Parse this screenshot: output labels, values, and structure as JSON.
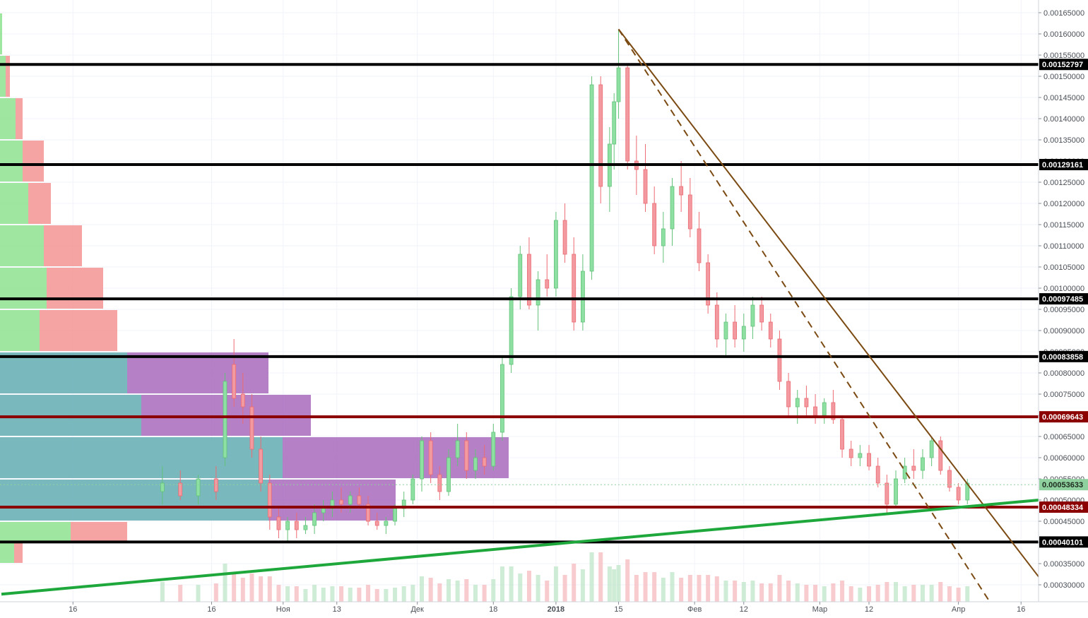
{
  "chart_data": {
    "type": "candlestick",
    "title": "",
    "xlabel": "",
    "ylabel": "",
    "ylim": [
      0.00026,
      0.00168
    ],
    "x_ticks": [
      {
        "label": "16",
        "day": 16
      },
      {
        "label": "16",
        "day": 47
      },
      {
        "label": "Ноя",
        "day": 63
      },
      {
        "label": "13",
        "day": 75
      },
      {
        "label": "Дек",
        "day": 93
      },
      {
        "label": "18",
        "day": 110
      },
      {
        "label": "2018",
        "day": 124
      },
      {
        "label": "15",
        "day": 138
      },
      {
        "label": "Фев",
        "day": 155
      },
      {
        "label": "12",
        "day": 166
      },
      {
        "label": "Мар",
        "day": 183
      },
      {
        "label": "12",
        "day": 194
      },
      {
        "label": "Апр",
        "day": 214
      },
      {
        "label": "16",
        "day": 228
      }
    ],
    "x_tick_bold": [
      "2018"
    ],
    "y_ticks": [
      "0.00030000",
      "0.00035000",
      "0.00040000",
      "0.00045000",
      "0.00050000",
      "0.00055000",
      "0.00060000",
      "0.00065000",
      "0.00070000",
      "0.00075000",
      "0.00080000",
      "0.00085000",
      "0.00090000",
      "0.00095000",
      "0.00100000",
      "0.00105000",
      "0.00110000",
      "0.00115000",
      "0.00120000",
      "0.00125000",
      "0.00130000",
      "0.00135000",
      "0.00140000",
      "0.00145000",
      "0.00150000",
      "0.00155000",
      "0.00160000",
      "0.00165000"
    ],
    "horizontal_levels": [
      {
        "value": 0.00152797,
        "label": "0.00152797",
        "color": "#000000"
      },
      {
        "value": 0.00129161,
        "label": "0.00129161",
        "color": "#000000"
      },
      {
        "value": 0.00097485,
        "label": "0.00097485",
        "color": "#000000"
      },
      {
        "value": 0.00083858,
        "label": "0.00083858",
        "color": "#000000"
      },
      {
        "value": 0.00069643,
        "label": "0.00069643",
        "color": "#8b0000"
      },
      {
        "value": 0.00048334,
        "label": "0.00048334",
        "color": "#8b0000"
      },
      {
        "value": 0.00040101,
        "label": "0.00040101",
        "color": "#000000"
      }
    ],
    "last_price": {
      "value": 0.00053633,
      "label": "0.00053633",
      "color": "#8fd19e"
    },
    "trendlines": [
      {
        "name": "",
        "color": "#7b4a12",
        "style": "solid",
        "from": {
          "day": 138,
          "price": 0.001611
        },
        "to": {
          "day": 232,
          "price": 0.000318
        }
      },
      {
        "name": "",
        "color": "#7b4a12",
        "style": "dashed",
        "from": {
          "day": 138,
          "price": 0.001611
        },
        "to": {
          "day": 221,
          "price": 0.00026
        }
      },
      {
        "name": "",
        "color": "#1ea83c",
        "style": "solid",
        "from": {
          "day": 0,
          "price": 0.000278
        },
        "to": {
          "day": 232,
          "price": 0.0005
        }
      }
    ],
    "candles": [
      {
        "day": 36,
        "o": 0.00052,
        "h": 0.00058,
        "l": 0.00049,
        "c": 0.00054
      },
      {
        "day": 40,
        "o": 0.00054,
        "h": 0.00057,
        "l": 0.0005,
        "c": 0.00051
      },
      {
        "day": 44,
        "o": 0.00051,
        "h": 0.00056,
        "l": 0.00049,
        "c": 0.00055
      },
      {
        "day": 48,
        "o": 0.00055,
        "h": 0.00058,
        "l": 0.0005,
        "c": 0.00052
      },
      {
        "day": 50,
        "o": 0.0006,
        "h": 0.0008,
        "l": 0.00058,
        "c": 0.00078
      },
      {
        "day": 52,
        "o": 0.00082,
        "h": 0.00088,
        "l": 0.00072,
        "c": 0.00074
      },
      {
        "day": 54,
        "o": 0.00075,
        "h": 0.0008,
        "l": 0.00068,
        "c": 0.00072
      },
      {
        "day": 56,
        "o": 0.00072,
        "h": 0.00075,
        "l": 0.0006,
        "c": 0.00062
      },
      {
        "day": 58,
        "o": 0.00062,
        "h": 0.00065,
        "l": 0.00052,
        "c": 0.00054
      },
      {
        "day": 60,
        "o": 0.00054,
        "h": 0.00056,
        "l": 0.00043,
        "c": 0.00046
      },
      {
        "day": 62,
        "o": 0.00046,
        "h": 0.00048,
        "l": 0.00041,
        "c": 0.00043
      },
      {
        "day": 64,
        "o": 0.00043,
        "h": 0.00046,
        "l": 0.0004,
        "c": 0.00045
      },
      {
        "day": 66,
        "o": 0.00045,
        "h": 0.00047,
        "l": 0.00041,
        "c": 0.00043
      },
      {
        "day": 68,
        "o": 0.00043,
        "h": 0.00046,
        "l": 0.00042,
        "c": 0.00044
      },
      {
        "day": 70,
        "o": 0.00044,
        "h": 0.00049,
        "l": 0.00042,
        "c": 0.00047
      },
      {
        "day": 72,
        "o": 0.00047,
        "h": 0.0005,
        "l": 0.00045,
        "c": 0.00048
      },
      {
        "day": 74,
        "o": 0.00048,
        "h": 0.00052,
        "l": 0.00046,
        "c": 0.0005
      },
      {
        "day": 76,
        "o": 0.0005,
        "h": 0.00053,
        "l": 0.00047,
        "c": 0.00049
      },
      {
        "day": 78,
        "o": 0.00049,
        "h": 0.00052,
        "l": 0.00047,
        "c": 0.00051
      },
      {
        "day": 80,
        "o": 0.00051,
        "h": 0.00053,
        "l": 0.00048,
        "c": 0.00049
      },
      {
        "day": 82,
        "o": 0.00049,
        "h": 0.00051,
        "l": 0.00044,
        "c": 0.00045
      },
      {
        "day": 84,
        "o": 0.00045,
        "h": 0.00047,
        "l": 0.00043,
        "c": 0.00044
      },
      {
        "day": 86,
        "o": 0.00044,
        "h": 0.00046,
        "l": 0.00042,
        "c": 0.00045
      },
      {
        "day": 88,
        "o": 0.00045,
        "h": 0.00049,
        "l": 0.00044,
        "c": 0.00048
      },
      {
        "day": 90,
        "o": 0.00048,
        "h": 0.00052,
        "l": 0.00046,
        "c": 0.0005
      },
      {
        "day": 92,
        "o": 0.0005,
        "h": 0.00056,
        "l": 0.00049,
        "c": 0.00055
      },
      {
        "day": 94,
        "o": 0.00055,
        "h": 0.00065,
        "l": 0.00052,
        "c": 0.00064
      },
      {
        "day": 96,
        "o": 0.00064,
        "h": 0.00066,
        "l": 0.00054,
        "c": 0.00056
      },
      {
        "day": 98,
        "o": 0.00056,
        "h": 0.00058,
        "l": 0.0005,
        "c": 0.00052
      },
      {
        "day": 100,
        "o": 0.00052,
        "h": 0.00062,
        "l": 0.00051,
        "c": 0.0006
      },
      {
        "day": 102,
        "o": 0.0006,
        "h": 0.00068,
        "l": 0.00058,
        "c": 0.00064
      },
      {
        "day": 104,
        "o": 0.00064,
        "h": 0.00066,
        "l": 0.00055,
        "c": 0.00057
      },
      {
        "day": 106,
        "o": 0.00057,
        "h": 0.00062,
        "l": 0.00055,
        "c": 0.0006
      },
      {
        "day": 108,
        "o": 0.0006,
        "h": 0.00063,
        "l": 0.00056,
        "c": 0.00058
      },
      {
        "day": 110,
        "o": 0.00058,
        "h": 0.00068,
        "l": 0.00057,
        "c": 0.00066
      },
      {
        "day": 112,
        "o": 0.00066,
        "h": 0.00084,
        "l": 0.00064,
        "c": 0.00082
      },
      {
        "day": 114,
        "o": 0.00082,
        "h": 0.001,
        "l": 0.0008,
        "c": 0.00098
      },
      {
        "day": 116,
        "o": 0.00098,
        "h": 0.0011,
        "l": 0.00095,
        "c": 0.00108
      },
      {
        "day": 118,
        "o": 0.00108,
        "h": 0.00112,
        "l": 0.00095,
        "c": 0.00096
      },
      {
        "day": 120,
        "o": 0.00096,
        "h": 0.00104,
        "l": 0.0009,
        "c": 0.00102
      },
      {
        "day": 122,
        "o": 0.00102,
        "h": 0.00108,
        "l": 0.00098,
        "c": 0.001
      },
      {
        "day": 124,
        "o": 0.001,
        "h": 0.00118,
        "l": 0.00098,
        "c": 0.00116
      },
      {
        "day": 126,
        "o": 0.00116,
        "h": 0.0012,
        "l": 0.00106,
        "c": 0.00108
      },
      {
        "day": 128,
        "o": 0.00108,
        "h": 0.00112,
        "l": 0.0009,
        "c": 0.00092
      },
      {
        "day": 130,
        "o": 0.00092,
        "h": 0.00108,
        "l": 0.0009,
        "c": 0.00104
      },
      {
        "day": 132,
        "o": 0.00104,
        "h": 0.0015,
        "l": 0.00102,
        "c": 0.00148
      },
      {
        "day": 134,
        "o": 0.00148,
        "h": 0.0015,
        "l": 0.0012,
        "c": 0.00124
      },
      {
        "day": 136,
        "o": 0.00124,
        "h": 0.00138,
        "l": 0.00118,
        "c": 0.00134
      },
      {
        "day": 137,
        "o": 0.00134,
        "h": 0.00146,
        "l": 0.00128,
        "c": 0.00144
      },
      {
        "day": 138,
        "o": 0.00144,
        "h": 0.00161,
        "l": 0.0014,
        "c": 0.00152
      },
      {
        "day": 140,
        "o": 0.00152,
        "h": 0.00153,
        "l": 0.00128,
        "c": 0.0013
      },
      {
        "day": 142,
        "o": 0.0013,
        "h": 0.00136,
        "l": 0.00122,
        "c": 0.00128
      },
      {
        "day": 144,
        "o": 0.00128,
        "h": 0.00134,
        "l": 0.00118,
        "c": 0.0012
      },
      {
        "day": 146,
        "o": 0.0012,
        "h": 0.00124,
        "l": 0.00108,
        "c": 0.0011
      },
      {
        "day": 148,
        "o": 0.0011,
        "h": 0.00118,
        "l": 0.00106,
        "c": 0.00114
      },
      {
        "day": 150,
        "o": 0.00114,
        "h": 0.00126,
        "l": 0.0011,
        "c": 0.00124
      },
      {
        "day": 152,
        "o": 0.00124,
        "h": 0.0013,
        "l": 0.00118,
        "c": 0.00122
      },
      {
        "day": 154,
        "o": 0.00122,
        "h": 0.00126,
        "l": 0.00112,
        "c": 0.00114
      },
      {
        "day": 156,
        "o": 0.00114,
        "h": 0.00118,
        "l": 0.00104,
        "c": 0.00106
      },
      {
        "day": 158,
        "o": 0.00106,
        "h": 0.00108,
        "l": 0.00094,
        "c": 0.00096
      },
      {
        "day": 160,
        "o": 0.00096,
        "h": 0.00099,
        "l": 0.00086,
        "c": 0.00088
      },
      {
        "day": 162,
        "o": 0.00088,
        "h": 0.00094,
        "l": 0.00084,
        "c": 0.00092
      },
      {
        "day": 164,
        "o": 0.00092,
        "h": 0.00096,
        "l": 0.00086,
        "c": 0.00088
      },
      {
        "day": 166,
        "o": 0.00088,
        "h": 0.00094,
        "l": 0.00085,
        "c": 0.00091
      },
      {
        "day": 168,
        "o": 0.00091,
        "h": 0.00098,
        "l": 0.00088,
        "c": 0.00096
      },
      {
        "day": 170,
        "o": 0.00096,
        "h": 0.00098,
        "l": 0.0009,
        "c": 0.00092
      },
      {
        "day": 172,
        "o": 0.00092,
        "h": 0.00094,
        "l": 0.00086,
        "c": 0.00088
      },
      {
        "day": 174,
        "o": 0.00088,
        "h": 0.0009,
        "l": 0.00076,
        "c": 0.00078
      },
      {
        "day": 176,
        "o": 0.00078,
        "h": 0.0008,
        "l": 0.0007,
        "c": 0.00072
      },
      {
        "day": 178,
        "o": 0.00072,
        "h": 0.00076,
        "l": 0.00068,
        "c": 0.00074
      },
      {
        "day": 180,
        "o": 0.00074,
        "h": 0.00077,
        "l": 0.0007,
        "c": 0.00072
      },
      {
        "day": 182,
        "o": 0.00072,
        "h": 0.00075,
        "l": 0.00068,
        "c": 0.0007
      },
      {
        "day": 184,
        "o": 0.0007,
        "h": 0.00074,
        "l": 0.00068,
        "c": 0.00073
      },
      {
        "day": 186,
        "o": 0.00073,
        "h": 0.00076,
        "l": 0.00068,
        "c": 0.00069
      },
      {
        "day": 188,
        "o": 0.00069,
        "h": 0.0007,
        "l": 0.0006,
        "c": 0.00062
      },
      {
        "day": 190,
        "o": 0.00062,
        "h": 0.00064,
        "l": 0.00058,
        "c": 0.0006
      },
      {
        "day": 192,
        "o": 0.0006,
        "h": 0.00063,
        "l": 0.00058,
        "c": 0.00061
      },
      {
        "day": 194,
        "o": 0.00061,
        "h": 0.00063,
        "l": 0.00057,
        "c": 0.00058
      },
      {
        "day": 196,
        "o": 0.00058,
        "h": 0.0006,
        "l": 0.00053,
        "c": 0.00054
      },
      {
        "day": 198,
        "o": 0.00054,
        "h": 0.00056,
        "l": 0.00047,
        "c": 0.00049
      },
      {
        "day": 200,
        "o": 0.00049,
        "h": 0.00057,
        "l": 0.00048,
        "c": 0.00055
      },
      {
        "day": 202,
        "o": 0.00055,
        "h": 0.0006,
        "l": 0.00054,
        "c": 0.00058
      },
      {
        "day": 204,
        "o": 0.00058,
        "h": 0.00062,
        "l": 0.00055,
        "c": 0.00057
      },
      {
        "day": 206,
        "o": 0.00057,
        "h": 0.00062,
        "l": 0.00055,
        "c": 0.0006
      },
      {
        "day": 208,
        "o": 0.0006,
        "h": 0.00065,
        "l": 0.00058,
        "c": 0.00064
      },
      {
        "day": 210,
        "o": 0.00064,
        "h": 0.00065,
        "l": 0.00056,
        "c": 0.00057
      },
      {
        "day": 212,
        "o": 0.00057,
        "h": 0.00058,
        "l": 0.00052,
        "c": 0.00053
      },
      {
        "day": 214,
        "o": 0.00053,
        "h": 0.00054,
        "l": 0.00049,
        "c": 0.0005
      },
      {
        "day": 216,
        "o": 0.0005,
        "h": 0.00055,
        "l": 0.00049,
        "c": 0.00054
      }
    ],
    "volume_profile": [
      {
        "price_low": 0.00155,
        "price_high": 0.00165,
        "up": 0.0015,
        "down": 0.0
      },
      {
        "price_low": 0.00145,
        "price_high": 0.00155,
        "up": 0.004,
        "down": 0.003
      },
      {
        "price_low": 0.00135,
        "price_high": 0.00145,
        "up": 0.011,
        "down": 0.005
      },
      {
        "price_low": 0.00125,
        "price_high": 0.00135,
        "up": 0.016,
        "down": 0.015
      },
      {
        "price_low": 0.00115,
        "price_high": 0.00125,
        "up": 0.02,
        "down": 0.016
      },
      {
        "price_low": 0.00105,
        "price_high": 0.00115,
        "up": 0.031,
        "down": 0.027
      },
      {
        "price_low": 0.00095,
        "price_high": 0.00105,
        "up": 0.033,
        "down": 0.04
      },
      {
        "price_low": 0.00085,
        "price_high": 0.00095,
        "up": 0.028,
        "down": 0.055
      },
      {
        "price_low": 0.00075,
        "price_high": 0.00085,
        "up": 0.09,
        "down": 0.1
      },
      {
        "price_low": 0.00065,
        "price_high": 0.00075,
        "up": 0.1,
        "down": 0.12
      },
      {
        "price_low": 0.00055,
        "price_high": 0.00065,
        "up": 0.2,
        "down": 0.16
      },
      {
        "price_low": 0.00045,
        "price_high": 0.00055,
        "up": 0.19,
        "down": 0.09
      },
      {
        "price_low": 0.0004,
        "price_high": 0.00045,
        "up": 0.05,
        "down": 0.04
      },
      {
        "price_low": 0.00035,
        "price_high": 0.0004,
        "up": 0.01,
        "down": 0.006
      }
    ]
  }
}
